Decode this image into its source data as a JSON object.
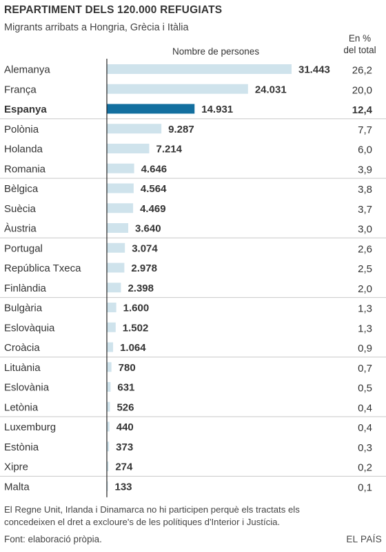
{
  "title": "REPARTIMENT DELS 120.000 REFUGIATS",
  "subtitle": "Migrants arribats a Hongria, Grècia i Itàlia",
  "column_header": "Nombre de persones",
  "pct_header_line1": "En %",
  "pct_header_line2": "del total",
  "note_line1": "El Regne Unit, Irlanda i Dinamarca no hi participen perquè els tractats els",
  "note_line2": "concedeixen el dret a excloure's de les polítiques d'Interior i Justícia.",
  "source": "Font: elaboració pròpia.",
  "brand": "EL PAÍS",
  "colors": {
    "bar": "#cfe3ec",
    "highlight_bar": "#136f9f",
    "axis": "#222222",
    "separator": "#c8c8c8",
    "text": "#333333"
  },
  "chart_data": {
    "type": "bar",
    "orientation": "horizontal",
    "highlight": "Espanya",
    "categories": [
      "Alemanya",
      "França",
      "Espanya",
      "Polònia",
      "Holanda",
      "Romania",
      "Bèlgica",
      "Suècia",
      "Àustria",
      "Portugal",
      "República Txeca",
      "Finlàndia",
      "Bulgària",
      "Eslovàquia",
      "Croàcia",
      "Lituània",
      "Eslovània",
      "Letònia",
      "Luxemburg",
      "Estònia",
      "Xipre",
      "Malta"
    ],
    "values": [
      31443,
      24031,
      14931,
      9287,
      7214,
      4646,
      4564,
      4469,
      3640,
      3074,
      2978,
      2398,
      1600,
      1502,
      1064,
      780,
      631,
      526,
      440,
      373,
      274,
      133
    ],
    "value_labels": [
      "31.443",
      "24.031",
      "14.931",
      "9.287",
      "7.214",
      "4.646",
      "4.564",
      "4.469",
      "3.640",
      "3.074",
      "2.978",
      "2.398",
      "1.600",
      "1.502",
      "1.064",
      "780",
      "631",
      "526",
      "440",
      "373",
      "274",
      "133"
    ],
    "percent_labels": [
      "26,2",
      "20,0",
      "12,4",
      "7,7",
      "6,0",
      "3,9",
      "3,8",
      "3,7",
      "3,0",
      "2,6",
      "2,5",
      "2,0",
      "1,3",
      "1,3",
      "0,9",
      "0,7",
      "0,5",
      "0,4",
      "0,4",
      "0,3",
      "0,2",
      "0,1"
    ],
    "xlim": [
      0,
      31443
    ]
  }
}
